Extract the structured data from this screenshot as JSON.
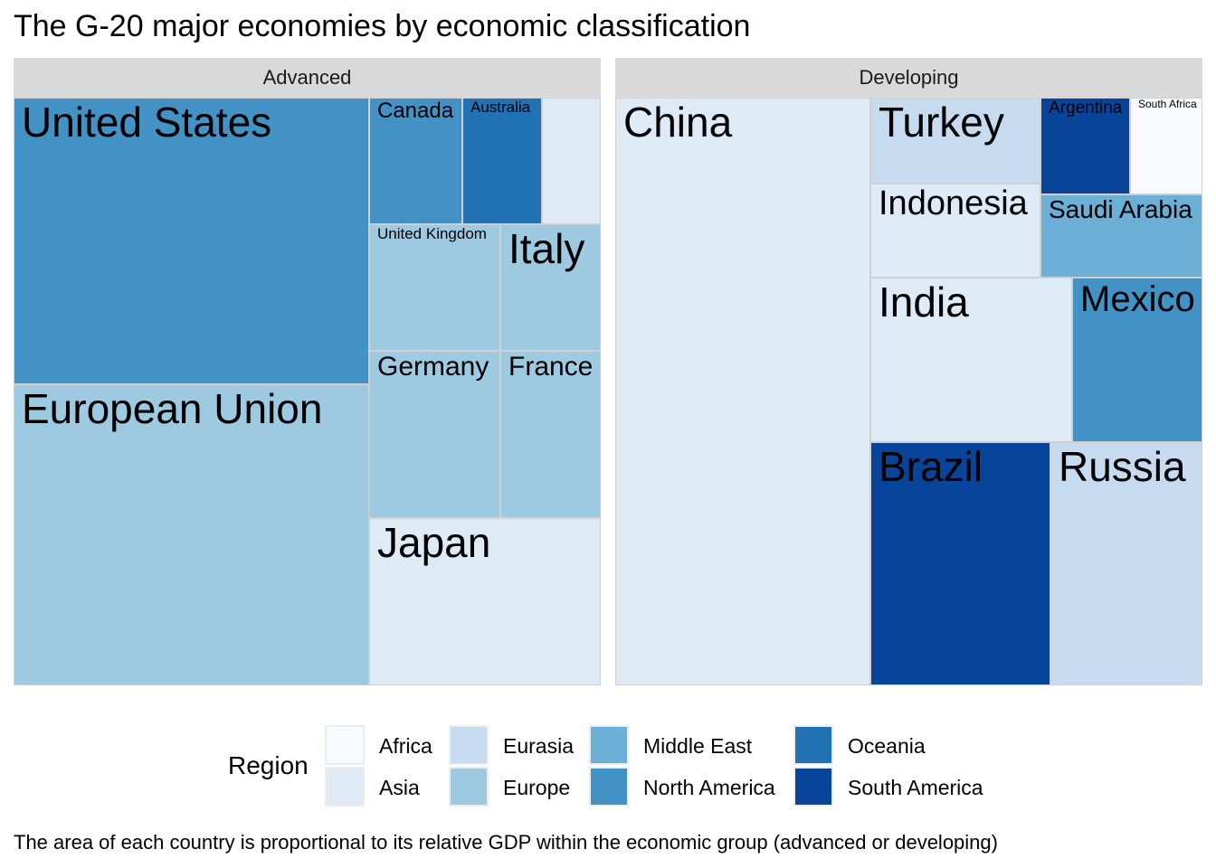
{
  "title": "The G-20 major economies by economic classification",
  "caption": "The area of each country is proportional to its relative GDP within the economic group (advanced or developing)",
  "colors": {
    "Africa": "#f7fbff",
    "Asia": "#deebf7",
    "Eurasia": "#c6dbef",
    "Europe": "#9ecae1",
    "Middle East": "#6baed6",
    "North America": "#4292c6",
    "Oceania": "#2171b5",
    "South America": "#08459a"
  },
  "legend": {
    "title": "Region",
    "items": [
      "Africa",
      "Asia",
      "Eurasia",
      "Europe",
      "Middle East",
      "North America",
      "Oceania",
      "South America"
    ]
  },
  "chart_data": {
    "type": "treemap",
    "value_label": "relative GDP within group (%)",
    "groups": [
      {
        "name": "Advanced",
        "items": [
          {
            "label": "United States",
            "region": "North America",
            "value": 29.4
          },
          {
            "label": "European Union",
            "region": "Europe",
            "value": 31.0
          },
          {
            "label": "Japan",
            "region": "Asia",
            "value": 11.0
          },
          {
            "label": "Germany",
            "region": "Europe",
            "value": 6.5
          },
          {
            "label": "France",
            "region": "Europe",
            "value": 4.9
          },
          {
            "label": "United Kingdom",
            "region": "Europe",
            "value": 4.8
          },
          {
            "label": "Italy",
            "region": "Europe",
            "value": 3.7
          },
          {
            "label": "Canada",
            "region": "North America",
            "value": 3.4
          },
          {
            "label": "Australia",
            "region": "Oceania",
            "value": 2.9
          },
          {
            "label": "",
            "region": "Asia",
            "value": 2.5
          }
        ]
      },
      {
        "name": "Developing",
        "items": [
          {
            "label": "China",
            "region": "Asia",
            "value": 43.4
          },
          {
            "label": "Brazil",
            "region": "South America",
            "value": 12.7
          },
          {
            "label": "Russia",
            "region": "Eurasia",
            "value": 10.7
          },
          {
            "label": "India",
            "region": "Asia",
            "value": 10.2
          },
          {
            "label": "Mexico",
            "region": "North America",
            "value": 5.9
          },
          {
            "label": "Turkey",
            "region": "Eurasia",
            "value": 4.5
          },
          {
            "label": "Indonesia",
            "region": "Asia",
            "value": 4.9
          },
          {
            "label": "Saudi Arabia",
            "region": "Middle East",
            "value": 4.0
          },
          {
            "label": "Argentina",
            "region": "South America",
            "value": 2.3
          },
          {
            "label": "South Africa",
            "region": "Africa",
            "value": 1.8
          }
        ]
      }
    ]
  }
}
